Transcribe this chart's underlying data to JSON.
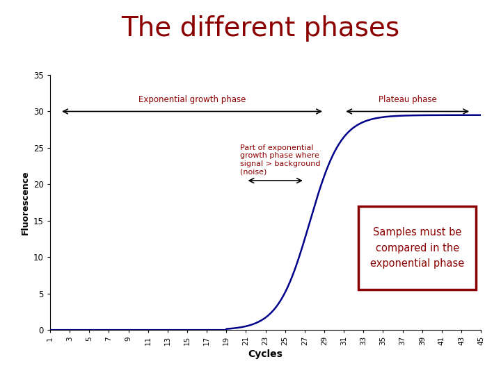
{
  "title": "The different phases",
  "title_color": "#8B0000",
  "title_fontsize": 28,
  "xlabel": "Cycles",
  "ylabel": "Fluorescence",
  "ylim": [
    0,
    35
  ],
  "xlim": [
    1,
    45
  ],
  "yticks": [
    0,
    5,
    10,
    15,
    20,
    25,
    30,
    35
  ],
  "xticks": [
    1,
    3,
    5,
    7,
    9,
    11,
    13,
    15,
    17,
    19,
    21,
    23,
    25,
    27,
    29,
    31,
    33,
    35,
    37,
    39,
    41,
    43,
    45
  ],
  "curve_color": "#00008B",
  "curve_linewidth": 1.8,
  "sigmoid_L": 29.5,
  "sigmoid_k": 0.62,
  "sigmoid_x0": 27.5,
  "annotation_color": "#8B0000",
  "exp_phase_label": "Exponential growth phase",
  "plateau_phase_label": "Plateau phase",
  "part_exp_label": "Part of exponential\ngrowth phase where\nsignal > background\n(noise)",
  "box_label": "Samples must be\ncompared in the\nexponential phase",
  "box_color": "#8B0000",
  "background_color": "#ffffff",
  "axis_bg_color": "#ffffff"
}
